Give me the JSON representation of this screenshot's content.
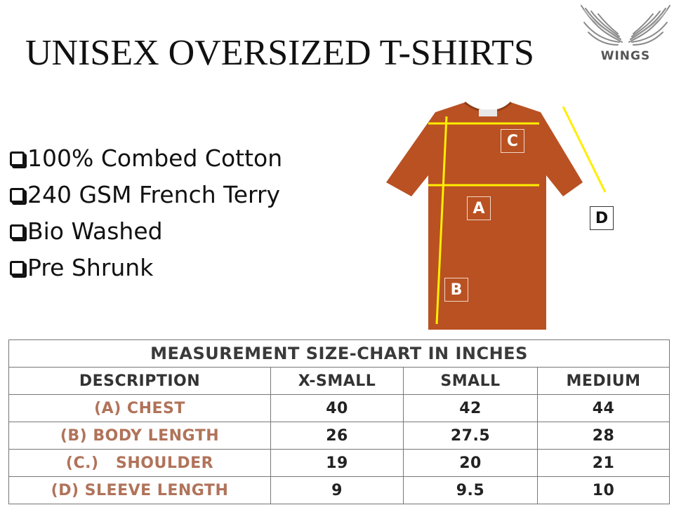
{
  "title": "UNISEX OVERSIZED T-SHIRTS",
  "logo": {
    "text": "WINGS"
  },
  "features": [
    "100% Combed Cotton",
    "240 GSM French Terry",
    "Bio Washed",
    "Pre Shrunk"
  ],
  "diagram": {
    "shirt_color": "#b95122",
    "guide_color": "#ffee00",
    "markers": [
      "C",
      "A",
      "B",
      "D"
    ]
  },
  "size_chart": {
    "heading": "MEASUREMENT SIZE-CHART IN INCHES",
    "columns": [
      "DESCRIPTION",
      "X-SMALL",
      "SMALL",
      "MEDIUM"
    ],
    "rows": [
      {
        "label": "(A) CHEST",
        "values": [
          "40",
          "42",
          "44"
        ]
      },
      {
        "label": "(B) BODY LENGTH",
        "values": [
          "26",
          "27.5",
          "28"
        ]
      },
      {
        "label": "(C.)   SHOULDER",
        "values": [
          "19",
          "20",
          "21"
        ]
      },
      {
        "label": "(D) SLEEVE LENGTH",
        "values": [
          "9",
          "9.5",
          "10"
        ]
      }
    ]
  }
}
